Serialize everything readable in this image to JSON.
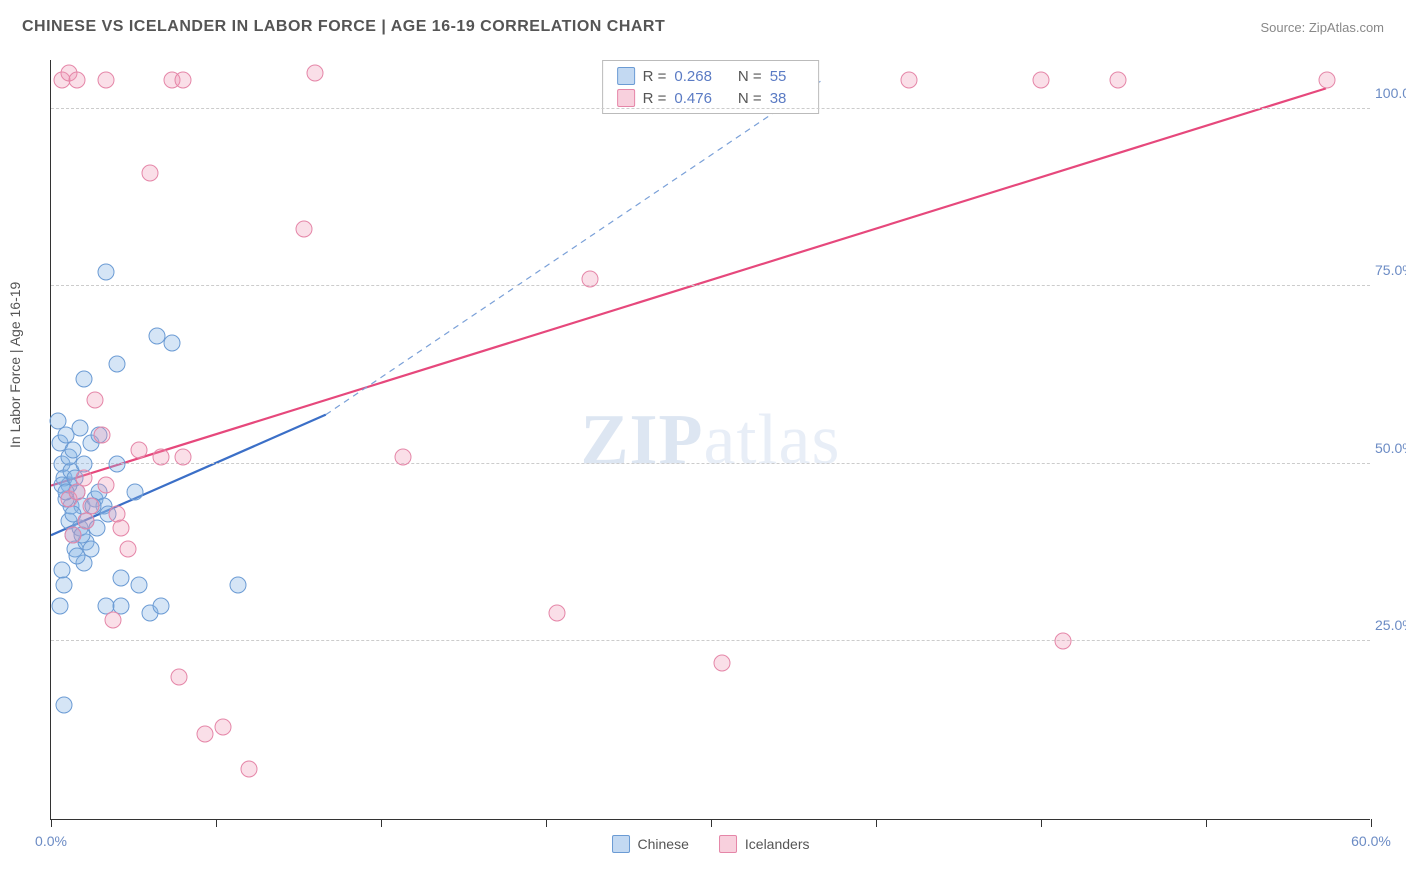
{
  "header": {
    "title": "CHINESE VS ICELANDER IN LABOR FORCE | AGE 16-19 CORRELATION CHART",
    "source": "Source: ZipAtlas.com"
  },
  "y_axis": {
    "label": "In Labor Force | Age 16-19"
  },
  "watermark": {
    "bold": "ZIP",
    "light": "atlas"
  },
  "chart": {
    "type": "scatter",
    "xlim": [
      0,
      60
    ],
    "ylim": [
      0,
      107
    ],
    "x_ticks": [
      0,
      7.5,
      15,
      22.5,
      30,
      37.5,
      45,
      52.5,
      60
    ],
    "x_tick_labels": {
      "0": "0.0%",
      "60": "60.0%"
    },
    "y_grid": [
      25,
      50,
      75,
      100
    ],
    "y_tick_labels": {
      "25": "25.0%",
      "50": "50.0%",
      "75": "75.0%",
      "100": "100.0%"
    },
    "series": [
      {
        "name": "Chinese",
        "marker_class": "marker-blue",
        "swatch_class": "blue",
        "points": [
          [
            0.3,
            56
          ],
          [
            0.4,
            53
          ],
          [
            0.5,
            50
          ],
          [
            0.6,
            48
          ],
          [
            0.7,
            54
          ],
          [
            0.8,
            42
          ],
          [
            0.9,
            44
          ],
          [
            1.0,
            40
          ],
          [
            1.1,
            38
          ],
          [
            1.2,
            46
          ],
          [
            1.3,
            41
          ],
          [
            1.4,
            44
          ],
          [
            1.5,
            36
          ],
          [
            1.6,
            39
          ],
          [
            0.5,
            35
          ],
          [
            0.6,
            33
          ],
          [
            0.7,
            45
          ],
          [
            0.8,
            47
          ],
          [
            0.9,
            49
          ],
          [
            1.0,
            43
          ],
          [
            1.2,
            37
          ],
          [
            1.4,
            40
          ],
          [
            1.6,
            42
          ],
          [
            1.8,
            38
          ],
          [
            2.0,
            45
          ],
          [
            2.2,
            46
          ],
          [
            2.4,
            44
          ],
          [
            2.6,
            43
          ],
          [
            3.0,
            50
          ],
          [
            3.2,
            34
          ],
          [
            3.8,
            46
          ],
          [
            4.0,
            33
          ],
          [
            4.5,
            29
          ],
          [
            5.0,
            30
          ],
          [
            1.5,
            62
          ],
          [
            2.5,
            77
          ],
          [
            3.0,
            64
          ],
          [
            4.8,
            68
          ],
          [
            5.5,
            67
          ],
          [
            8.5,
            33
          ],
          [
            0.4,
            30
          ],
          [
            0.6,
            16
          ],
          [
            2.5,
            30
          ],
          [
            3.2,
            30
          ],
          [
            1.8,
            53
          ],
          [
            2.2,
            54
          ],
          [
            0.8,
            51
          ],
          [
            1.0,
            52
          ],
          [
            1.3,
            55
          ],
          [
            0.5,
            47
          ],
          [
            0.7,
            46
          ],
          [
            1.1,
            48
          ],
          [
            1.5,
            50
          ],
          [
            1.9,
            44
          ],
          [
            2.1,
            41
          ]
        ]
      },
      {
        "name": "Icelanders",
        "marker_class": "marker-pink",
        "swatch_class": "pink",
        "points": [
          [
            0.5,
            104
          ],
          [
            0.8,
            105
          ],
          [
            1.2,
            104
          ],
          [
            2.5,
            104
          ],
          [
            5.5,
            104
          ],
          [
            6.0,
            104
          ],
          [
            12.0,
            105
          ],
          [
            39.0,
            104
          ],
          [
            45.0,
            104
          ],
          [
            48.5,
            104
          ],
          [
            58.0,
            104
          ],
          [
            4.5,
            91
          ],
          [
            24.5,
            76
          ],
          [
            11.5,
            83
          ],
          [
            2.0,
            59
          ],
          [
            2.3,
            54
          ],
          [
            2.5,
            47
          ],
          [
            3.0,
            43
          ],
          [
            3.2,
            41
          ],
          [
            3.5,
            38
          ],
          [
            4.0,
            52
          ],
          [
            5.0,
            51
          ],
          [
            6.0,
            51
          ],
          [
            16.0,
            51
          ],
          [
            0.8,
            45
          ],
          [
            1.2,
            46
          ],
          [
            1.5,
            48
          ],
          [
            1.8,
            44
          ],
          [
            2.8,
            28
          ],
          [
            5.8,
            20
          ],
          [
            7.0,
            12
          ],
          [
            7.8,
            13
          ],
          [
            9.0,
            7
          ],
          [
            23.0,
            29
          ],
          [
            30.5,
            22
          ],
          [
            46.0,
            25
          ],
          [
            1.0,
            40
          ],
          [
            1.6,
            42
          ]
        ]
      }
    ],
    "trend_lines": {
      "blue_solid": {
        "color": "#3b6fc7",
        "width": 2.2,
        "dash": "none",
        "x1": 0,
        "y1": 40,
        "x2": 12.5,
        "y2": 57
      },
      "blue_dash": {
        "color": "#7aa0d8",
        "width": 1.2,
        "dash": "6,5",
        "x1": 12.5,
        "y1": 57,
        "x2": 35,
        "y2": 104
      },
      "pink_solid": {
        "color": "#e6487c",
        "width": 2.2,
        "dash": "none",
        "x1": 0,
        "y1": 47,
        "x2": 58,
        "y2": 103
      }
    }
  },
  "legend_top": {
    "rows": [
      {
        "swatch": "blue",
        "r_label": "R =",
        "r": "0.268",
        "n_label": "N =",
        "n": "55"
      },
      {
        "swatch": "pink",
        "r_label": "R =",
        "r": "0.476",
        "n_label": "N =",
        "n": "38"
      }
    ]
  },
  "legend_bottom": {
    "items": [
      {
        "swatch": "blue",
        "label": "Chinese"
      },
      {
        "swatch": "pink",
        "label": "Icelanders"
      }
    ]
  }
}
